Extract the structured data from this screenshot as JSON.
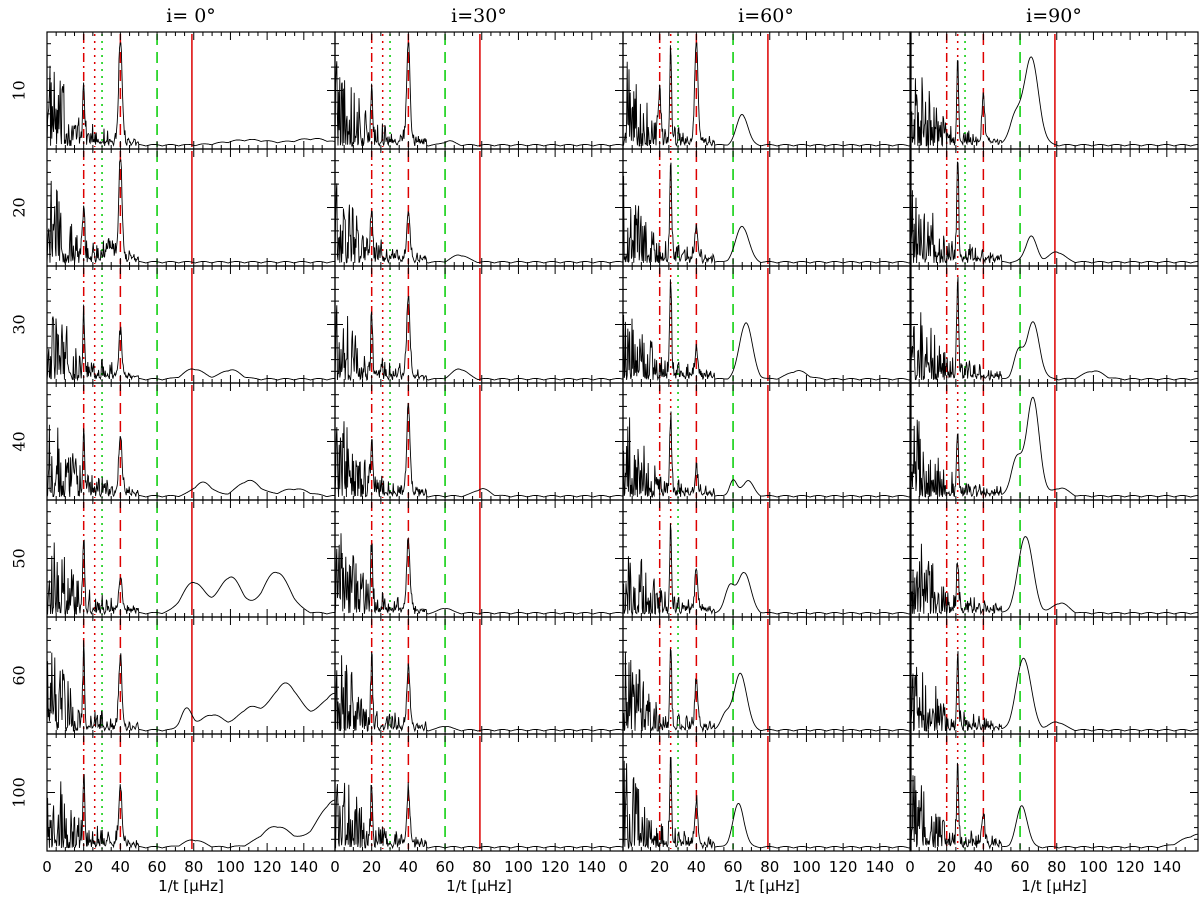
{
  "chart_data": {
    "type": "line",
    "column_titles": [
      "i=  0°",
      "i=30°",
      "i=60°",
      "i=90°"
    ],
    "row_labels": [
      "10",
      "20",
      "30",
      "40",
      "50",
      "60",
      "100"
    ],
    "xlabel": "1/t  [μHz]",
    "xlim": [
      0,
      157
    ],
    "x_ticks": [
      0,
      20,
      40,
      60,
      80,
      100,
      120,
      140
    ],
    "x_tick_labels_first_panel": [
      "0",
      "20",
      "40",
      "60",
      "80",
      "100",
      "120",
      "140"
    ],
    "x_tick_labels_other_panels": [
      "0",
      "20",
      "40",
      "60",
      "80",
      "100",
      "120",
      "140"
    ],
    "reference_lines": [
      {
        "x": 20,
        "color": "#dd0000",
        "style": "dash-dot"
      },
      {
        "x": 26,
        "color": "#dd0000",
        "style": "dotted"
      },
      {
        "x": 40,
        "color": "#dd0000",
        "style": "dashed"
      },
      {
        "x": 79,
        "color": "#dd0000",
        "style": "solid"
      },
      {
        "x": 30,
        "color": "#00cc00",
        "style": "dotted"
      },
      {
        "x": 60,
        "color": "#00cc00",
        "style": "dashed"
      }
    ],
    "series_description": "black power-spectrum curves, one per panel (7 rows x 4 columns)",
    "panels_peaks": [
      [
        [
          [
            40,
            1.0,
            0.9
          ],
          [
            20,
            0.55,
            0.5
          ],
          [
            110,
            0.05,
            12
          ],
          [
            145,
            0.06,
            10
          ]
        ],
        [
          [
            40,
            1.0,
            0.9
          ],
          [
            20,
            0.55,
            0.5
          ],
          [
            62,
            0.04,
            3
          ]
        ],
        [
          [
            40,
            1.0,
            0.9
          ],
          [
            20,
            0.55,
            0.5
          ],
          [
            26,
            0.9,
            0.5
          ],
          [
            65,
            0.3,
            3
          ]
        ],
        [
          [
            66,
            0.85,
            4
          ],
          [
            57,
            0.25,
            3
          ],
          [
            40,
            0.4,
            0.8
          ],
          [
            26,
            0.8,
            0.5
          ]
        ]
      ],
      [
        [
          [
            40,
            1.0,
            0.9
          ],
          [
            20,
            0.55,
            0.5
          ],
          [
            34,
            0.12,
            2
          ]
        ],
        [
          [
            40,
            0.45,
            0.9
          ],
          [
            20,
            0.5,
            0.5
          ],
          [
            68,
            0.07,
            4
          ]
        ],
        [
          [
            40,
            0.3,
            0.9
          ],
          [
            26,
            0.95,
            0.5
          ],
          [
            65,
            0.35,
            3.5
          ]
        ],
        [
          [
            26,
            1.0,
            0.5
          ],
          [
            66,
            0.25,
            3
          ],
          [
            80,
            0.1,
            4
          ]
        ]
      ],
      [
        [
          [
            40,
            0.4,
            0.9
          ],
          [
            20,
            0.55,
            0.5
          ],
          [
            80,
            0.1,
            5
          ],
          [
            100,
            0.09,
            5
          ]
        ],
        [
          [
            40,
            0.75,
            0.9
          ],
          [
            20,
            0.5,
            0.5
          ],
          [
            68,
            0.1,
            4
          ]
        ],
        [
          [
            67,
            0.55,
            3.5
          ],
          [
            40,
            0.25,
            0.8
          ],
          [
            26,
            0.9,
            0.5
          ],
          [
            95,
            0.08,
            5
          ]
        ],
        [
          [
            67,
            0.55,
            3.5
          ],
          [
            59,
            0.25,
            2.5
          ],
          [
            26,
            0.9,
            0.5
          ],
          [
            100,
            0.08,
            5
          ]
        ]
      ],
      [
        [
          [
            40,
            0.55,
            0.9
          ],
          [
            20,
            0.6,
            0.5
          ],
          [
            85,
            0.13,
            5
          ],
          [
            110,
            0.15,
            6
          ],
          [
            135,
            0.07,
            7
          ]
        ],
        [
          [
            40,
            0.85,
            0.9
          ],
          [
            20,
            0.5,
            0.5
          ],
          [
            80,
            0.07,
            4
          ]
        ],
        [
          [
            60,
            0.15,
            2
          ],
          [
            68,
            0.15,
            3
          ],
          [
            40,
            0.2,
            0.8
          ],
          [
            26,
            0.7,
            0.5
          ]
        ],
        [
          [
            67,
            0.95,
            3.5
          ],
          [
            58,
            0.35,
            3
          ],
          [
            26,
            0.6,
            0.5
          ],
          [
            82,
            0.08,
            4
          ]
        ]
      ],
      [
        [
          [
            40,
            0.3,
            0.9
          ],
          [
            20,
            0.7,
            0.5
          ],
          [
            80,
            0.3,
            6
          ],
          [
            100,
            0.35,
            6
          ],
          [
            125,
            0.4,
            7
          ]
        ],
        [
          [
            40,
            0.65,
            0.9
          ],
          [
            20,
            0.6,
            0.5
          ],
          [
            60,
            0.05,
            3
          ]
        ],
        [
          [
            66,
            0.4,
            3.5
          ],
          [
            58,
            0.25,
            2.5
          ],
          [
            40,
            0.4,
            0.8
          ],
          [
            26,
            0.8,
            0.5
          ]
        ],
        [
          [
            63,
            0.75,
            4
          ],
          [
            26,
            0.45,
            0.5
          ],
          [
            82,
            0.1,
            4
          ]
        ]
      ],
      [
        [
          [
            40,
            0.65,
            0.9
          ],
          [
            20,
            0.7,
            0.5
          ],
          [
            76,
            0.2,
            3
          ],
          [
            90,
            0.15,
            6
          ],
          [
            110,
            0.2,
            6
          ],
          [
            130,
            0.45,
            8
          ],
          [
            157,
            0.35,
            8
          ]
        ],
        [
          [
            40,
            0.55,
            0.9
          ],
          [
            20,
            0.6,
            0.5
          ],
          [
            60,
            0.04,
            3
          ]
        ],
        [
          [
            64,
            0.55,
            3.5
          ],
          [
            56,
            0.15,
            2.5
          ],
          [
            40,
            0.45,
            0.8
          ],
          [
            26,
            0.8,
            0.5
          ]
        ],
        [
          [
            62,
            0.7,
            4
          ],
          [
            26,
            0.7,
            0.5
          ],
          [
            80,
            0.08,
            4
          ]
        ]
      ],
      [
        [
          [
            40,
            0.55,
            0.9
          ],
          [
            20,
            0.6,
            0.5
          ],
          [
            80,
            0.07,
            5
          ],
          [
            125,
            0.2,
            8
          ],
          [
            157,
            0.45,
            9
          ]
        ],
        [
          [
            40,
            0.5,
            0.9
          ],
          [
            20,
            0.55,
            0.5
          ]
        ],
        [
          [
            63,
            0.42,
            3
          ],
          [
            40,
            0.4,
            0.8
          ],
          [
            26,
            0.8,
            0.5
          ]
        ],
        [
          [
            61,
            0.4,
            3
          ],
          [
            40,
            0.25,
            0.8
          ],
          [
            26,
            0.8,
            0.5
          ],
          [
            157,
            0.12,
            8
          ]
        ]
      ]
    ]
  }
}
